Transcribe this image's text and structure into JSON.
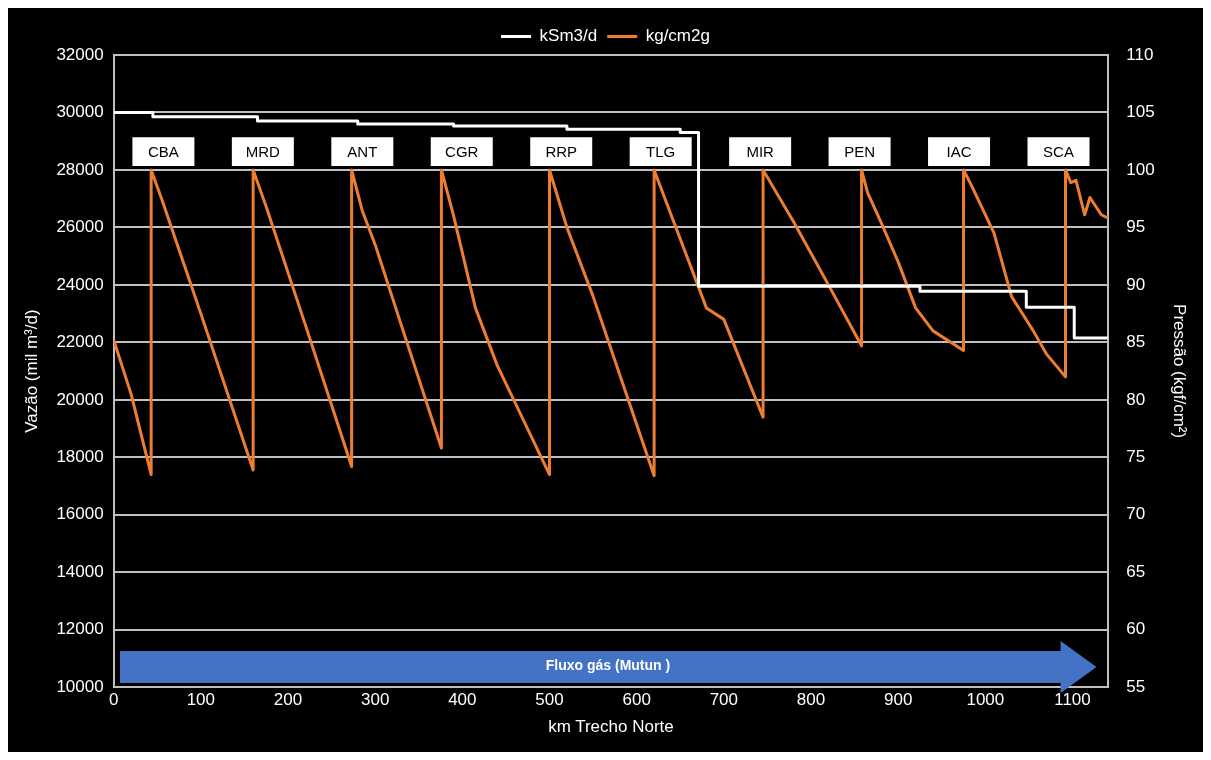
{
  "chart_data": {
    "type": "line",
    "xlabel": "km Trecho Norte",
    "ylabel": "Vazão (mil m³/d)",
    "y2label": "Pressão (kgf/cm²)",
    "xlim": [
      0,
      1141
    ],
    "xticks": [
      0,
      100,
      200,
      300,
      400,
      500,
      600,
      700,
      800,
      900,
      1000,
      1100
    ],
    "ylim": [
      10000,
      32000
    ],
    "yticks": [
      10000,
      12000,
      14000,
      16000,
      18000,
      20000,
      22000,
      24000,
      26000,
      28000,
      30000,
      32000
    ],
    "y2lim": [
      55,
      110
    ],
    "y2ticks": [
      55,
      60,
      65,
      70,
      75,
      80,
      85,
      90,
      95,
      100,
      105,
      110
    ],
    "grid": "y",
    "legend": "top",
    "marker": "none",
    "line_style": "solid",
    "series": [
      {
        "name": "kSm3/d",
        "type": "step",
        "color": "#ffffff",
        "x": [
          0,
          45,
          165,
          280,
          390,
          520,
          650,
          671,
          925,
          1047,
          1102,
          1141
        ],
        "values": [
          30000,
          29850,
          29700,
          29600,
          29530,
          29420,
          29300,
          23950,
          23780,
          23220,
          22150,
          22150
        ]
      },
      {
        "name": "kg/cm2g",
        "type": "line",
        "axis": "y2",
        "color": "#ed7d31",
        "x": [
          0,
          20,
          43,
          43,
          55,
          100,
          160,
          160,
          175,
          220,
          273,
          273,
          285,
          300,
          330,
          376,
          376,
          390,
          415,
          440,
          500,
          500,
          520,
          550,
          620,
          620,
          640,
          680,
          700,
          745,
          745,
          780,
          820,
          858,
          858,
          865,
          880,
          900,
          920,
          940,
          975,
          975,
          985,
          1010,
          1030,
          1055,
          1070,
          1092,
          1092,
          1098,
          1104,
          1114,
          1120,
          1133,
          1141
        ],
        "values": [
          85.2,
          80.5,
          73.5,
          100,
          97.5,
          87.5,
          73.9,
          100,
          96.8,
          86.5,
          74.2,
          100,
          96.5,
          93.5,
          86.5,
          75.8,
          100,
          96,
          88,
          83,
          73.5,
          100,
          95,
          89,
          73.4,
          100,
          96,
          88,
          87,
          78.5,
          100,
          95.5,
          90,
          84.7,
          100,
          98,
          95.5,
          92,
          88,
          86,
          84.3,
          100,
          98.5,
          94.5,
          89,
          86,
          84,
          82,
          100,
          98.9,
          99.1,
          96.1,
          97.6,
          96.1,
          95.8
        ]
      }
    ],
    "annotations": [
      "CBA",
      "MRD",
      "ANT",
      "CGR",
      "RRP",
      "TLG",
      "MIR",
      "PEN",
      "IAC",
      "SCA",
      "Fluxo gás (Mutun )"
    ]
  }
}
